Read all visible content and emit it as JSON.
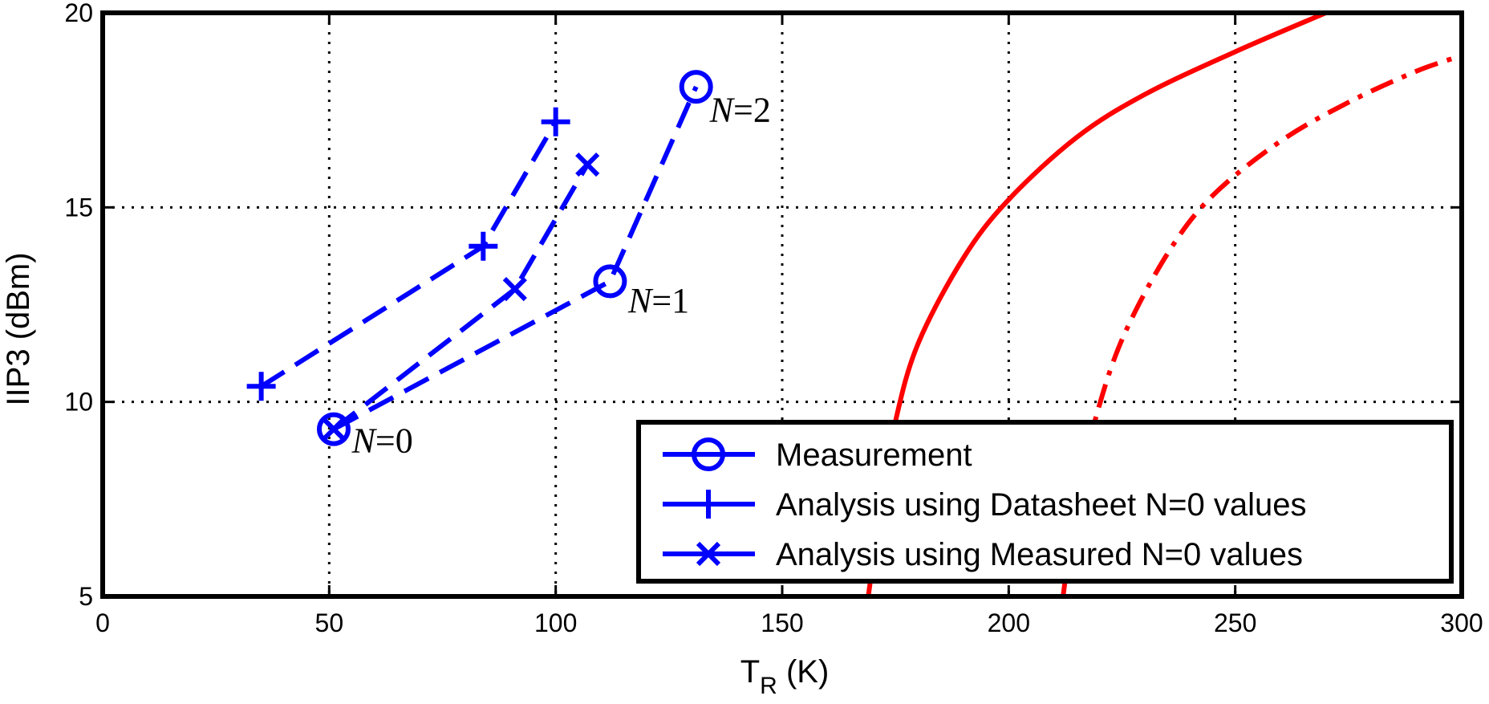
{
  "chart_data": {
    "type": "line",
    "title": "",
    "xlabel": "T",
    "xlabel_sub": "R",
    "xlabel_unit": " (K)",
    "ylabel": "IIP3 (dBm)",
    "xlim": [
      0,
      300
    ],
    "ylim": [
      5,
      20
    ],
    "xticks": [
      0,
      50,
      100,
      150,
      200,
      250,
      300
    ],
    "yticks": [
      5,
      10,
      15,
      20
    ],
    "grid": true,
    "legend_position": "bottom-right",
    "series": [
      {
        "name": "Measurement",
        "color": "#0000ff",
        "line_style": "dashed",
        "marker": "circle",
        "x": [
          51,
          112,
          131
        ],
        "y": [
          9.3,
          13.1,
          18.1
        ]
      },
      {
        "name": "Analysis using Datasheet N=0 values",
        "color": "#0000ff",
        "line_style": "dashed",
        "marker": "plus",
        "x": [
          35,
          84,
          100
        ],
        "y": [
          10.4,
          14.0,
          17.2
        ]
      },
      {
        "name": "Analysis using Measured N=0 values",
        "color": "#0000ff",
        "line_style": "dashed",
        "marker": "x",
        "x": [
          51,
          91,
          107
        ],
        "y": [
          9.3,
          12.9,
          16.1
        ]
      }
    ],
    "curves": [
      {
        "color": "#ff0000",
        "line_style": "solid",
        "x": [
          169,
          172,
          175,
          180,
          190,
          200,
          215,
          230,
          250,
          270
        ],
        "y": [
          5.0,
          7.5,
          9.5,
          11.5,
          13.7,
          15.2,
          16.8,
          17.9,
          19.0,
          20.0
        ]
      },
      {
        "color": "#ff0000",
        "line_style": "dashdot",
        "x": [
          212,
          215,
          219,
          225,
          235,
          245,
          260,
          275,
          290,
          300
        ],
        "y": [
          5.0,
          7.5,
          9.5,
          11.6,
          13.8,
          15.3,
          16.7,
          17.7,
          18.5,
          18.9
        ]
      }
    ],
    "annotations": [
      {
        "italic": "N",
        "text": "=0",
        "x": 55,
        "y": 8.7
      },
      {
        "italic": "N",
        "text": "=1",
        "x": 116,
        "y": 12.3
      },
      {
        "italic": "N",
        "text": "=2",
        "x": 134,
        "y": 17.2
      }
    ]
  }
}
